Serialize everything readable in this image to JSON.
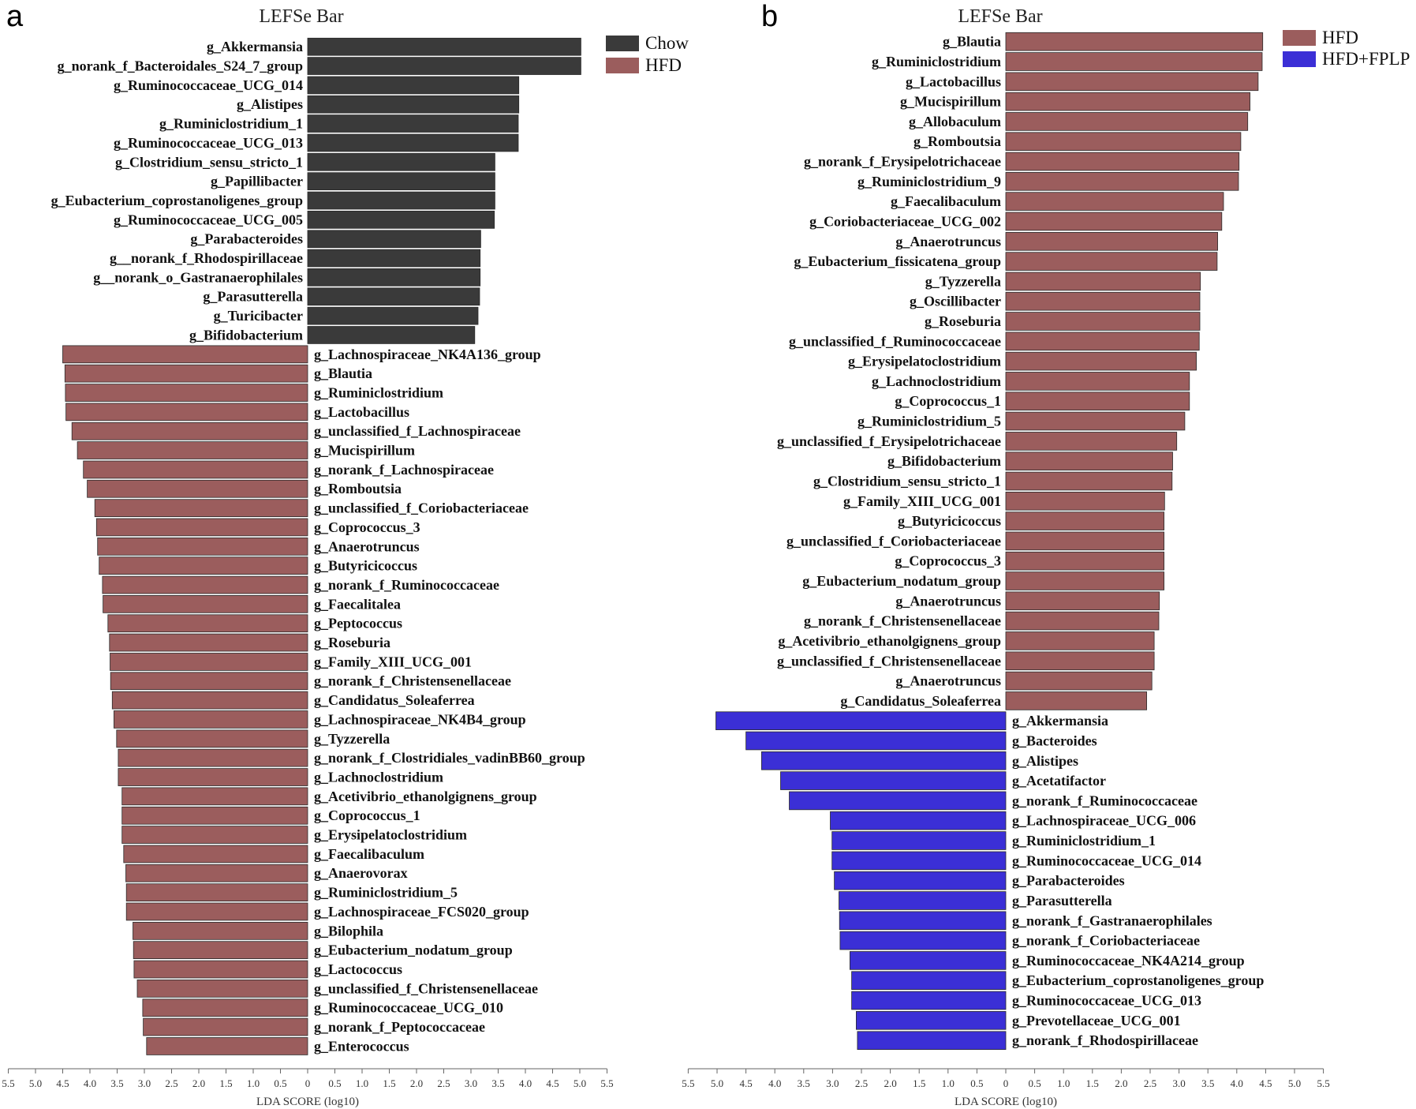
{
  "colors": {
    "Chow": "#3a3a3a",
    "HFD": "#9b5d5d",
    "HFD+FPLP": "#3b2fd6"
  },
  "chart_data": [
    {
      "type": "bar",
      "orientation": "horizontal-diverging",
      "panel_letter": "a",
      "title": "LEFSe Bar",
      "xlabel": "LDA SCORE (log10)",
      "xlim": [
        -5.5,
        5.5
      ],
      "xticks": [
        "5.5",
        "5.0",
        "4.5",
        "4.0",
        "3.5",
        "3.0",
        "2.5",
        "2.0",
        "1.5",
        "1.0",
        "0.5",
        "0",
        "0.5",
        "1.0",
        "1.5",
        "2.0",
        "2.5",
        "3.0",
        "3.5",
        "4.0",
        "4.5",
        "5.0",
        "5.5"
      ],
      "legend": [
        "Chow",
        "HFD"
      ],
      "legend_position": "top-right",
      "series": [
        {
          "name": "Chow",
          "direction": "right",
          "categories": [
            "g_Akkermansia",
            "g_norank_f_Bacteroidales_S24_7_group",
            "g_Ruminococcaceae_UCG_014",
            "g_Alistipes",
            "g_Ruminiclostridium_1",
            "g_Ruminococcaceae_UCG_013",
            "g_Clostridium_sensu_stricto_1",
            "g_Papillibacter",
            "g_Eubacterium_coprostanoligenes_group",
            "g_Ruminococcaceae_UCG_005",
            "g_Parabacteroides",
            "g__norank_f_Rhodospirillaceae",
            "g__norank_o_Gastranaerophilales",
            "g_Parasutterella",
            "g_Turicibacter",
            "g_Bifidobacterium"
          ],
          "values": [
            5.02,
            5.02,
            3.88,
            3.88,
            3.87,
            3.87,
            3.44,
            3.44,
            3.44,
            3.43,
            3.18,
            3.17,
            3.17,
            3.16,
            3.13,
            3.07
          ]
        },
        {
          "name": "HFD",
          "direction": "left",
          "categories": [
            "g_Lachnospiraceae_NK4A136_group",
            "g_Blautia",
            "g_Ruminiclostridium",
            "g_Lactobacillus",
            "g_unclassified_f_Lachnospiraceae",
            "g_Mucispirillum",
            "g_norank_f_Lachnospiraceae",
            "g_Romboutsia",
            "g_unclassified_f_Coriobacteriaceae",
            "g_Coprococcus_3",
            "g_Anaerotruncus",
            "g_Butyricicoccus",
            "g_norank_f_Ruminococcaceae",
            "g_Faecalitalea",
            "g_Peptococcus",
            "g_Roseburia",
            "g_Family_XIII_UCG_001",
            "g_norank_f_Christensenellaceae",
            "g_Candidatus_Soleaferrea",
            "g_Lachnospiraceae_NK4B4_group",
            "g_Tyzzerella",
            "g_norank_f_Clostridiales_vadinBB60_group",
            "g_Lachnoclostridium",
            "g_Acetivibrio_ethanolgignens_group",
            "g_Coprococcus_1",
            "g_Erysipelatoclostridium",
            "g_Faecalibaculum",
            "g_Anaerovorax",
            "g_Ruminiclostridium_5",
            "g_Lachnospiraceae_FCS020_group",
            "g_Bilophila",
            "g_Eubacterium_nodatum_group",
            "g_Lactococcus",
            "g_unclassified_f_Christensenellaceae",
            "g_Ruminococcaceae_UCG_010",
            "g_norank_f_Peptococcaceae",
            "g_Enterococcus"
          ],
          "values": [
            4.5,
            4.46,
            4.45,
            4.44,
            4.33,
            4.23,
            4.12,
            4.05,
            3.91,
            3.88,
            3.86,
            3.83,
            3.77,
            3.76,
            3.67,
            3.64,
            3.63,
            3.62,
            3.59,
            3.56,
            3.51,
            3.48,
            3.48,
            3.41,
            3.41,
            3.41,
            3.38,
            3.34,
            3.33,
            3.33,
            3.21,
            3.2,
            3.19,
            3.13,
            3.03,
            3.02,
            2.96
          ]
        }
      ]
    },
    {
      "type": "bar",
      "orientation": "horizontal-diverging",
      "panel_letter": "b",
      "title": "LEFSe Bar",
      "xlabel": "LDA SCORE (log10)",
      "xlim": [
        -5.5,
        5.5
      ],
      "xticks": [
        "5.5",
        "5.0",
        "4.5",
        "4.0",
        "3.5",
        "3.0",
        "2.5",
        "2.0",
        "1.5",
        "1.0",
        "0.5",
        "0",
        "0.5",
        "1.0",
        "1.5",
        "2.0",
        "2.5",
        "3.0",
        "3.5",
        "4.0",
        "4.5",
        "5.0",
        "5.5"
      ],
      "legend": [
        "HFD",
        "HFD+FPLP"
      ],
      "legend_position": "top-right",
      "series": [
        {
          "name": "HFD",
          "direction": "right",
          "categories": [
            "g_Blautia",
            "g_Ruminiclostridium",
            "g_Lactobacillus",
            "g_Mucispirillum",
            "g_Allobaculum",
            "g_Romboutsia",
            "g_norank_f_Erysipelotrichaceae",
            "g_Ruminiclostridium_9",
            "g_Faecalibaculum",
            "g_Coriobacteriaceae_UCG_002",
            "g_Anaerotruncus",
            "g_Eubacterium_fissicatena_group",
            "g_Tyzzerella",
            "g_Oscillibacter",
            "g_Roseburia",
            "g_unclassified_f_Ruminococcaceae",
            "g_Erysipelatoclostridium",
            "g_Lachnoclostridium",
            "g_Coprococcus_1",
            "g_Ruminiclostridium_5",
            "g_unclassified_f_Erysipelotrichaceae",
            "g_Bifidobacterium",
            "g_Clostridium_sensu_stricto_1",
            "g_Family_XIII_UCG_001",
            "g_Butyricicoccus",
            "g_unclassified_f_Coriobacteriaceae",
            "g_Coprococcus_3",
            "g_Eubacterium_nodatum_group",
            "g_Anaerotruncus",
            "g_norank_f_Christensenellaceae",
            "g_Acetivibrio_ethanolgignens_group",
            "g_unclassified_f_Christensenellaceae",
            "g_Anaerotruncus",
            "g_Candidatus_Soleaferrea"
          ],
          "values": [
            4.45,
            4.44,
            4.37,
            4.23,
            4.19,
            4.07,
            4.04,
            4.03,
            3.77,
            3.74,
            3.67,
            3.66,
            3.37,
            3.36,
            3.36,
            3.35,
            3.3,
            3.18,
            3.18,
            3.1,
            2.96,
            2.89,
            2.88,
            2.75,
            2.74,
            2.74,
            2.74,
            2.74,
            2.66,
            2.65,
            2.57,
            2.57,
            2.53,
            2.44
          ]
        },
        {
          "name": "HFD+FPLP",
          "direction": "left",
          "categories": [
            "g_Akkermansia",
            "g_Bacteroides",
            "g_Alistipes",
            "g_Acetatifactor",
            "g_norank_f_Ruminococcaceae",
            "g_Lachnospiraceae_UCG_006",
            "g_Ruminiclostridium_1",
            "g_Ruminococcaceae_UCG_014",
            "g_Parabacteroides",
            "g_Parasutterella",
            "g_norank_f_Gastranaerophilales",
            "g_norank_f_Coriobacteriaceae",
            "g_Ruminococcaceae_NK4A214_group",
            "g_Eubacterium_coprostanoligenes_group",
            "g_Ruminococcaceae_UCG_013",
            "g_Prevotellaceae_UCG_001",
            "g_norank_f_Rhodospirillaceae"
          ],
          "values": [
            5.02,
            4.5,
            4.23,
            3.9,
            3.75,
            3.04,
            3.01,
            3.01,
            2.97,
            2.89,
            2.88,
            2.87,
            2.7,
            2.67,
            2.67,
            2.59,
            2.57
          ]
        }
      ]
    }
  ]
}
